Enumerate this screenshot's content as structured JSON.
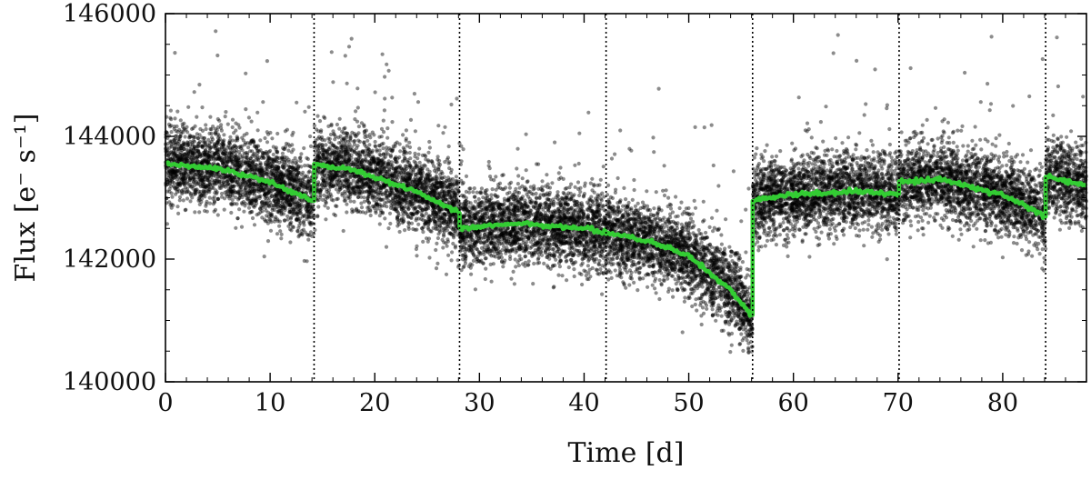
{
  "chart_data": {
    "type": "scatter",
    "xlabel": "Time [d]",
    "ylabel": "Flux [e⁻ s⁻¹]",
    "xlim": [
      0,
      88
    ],
    "ylim": [
      140000,
      146000
    ],
    "xticks": [
      "0",
      "10",
      "20",
      "30",
      "40",
      "50",
      "60",
      "70",
      "80"
    ],
    "yticks": [
      "140000",
      "142000",
      "144000",
      "146000"
    ],
    "grid": false,
    "point_color": "#000000",
    "model_color": "#33cc33",
    "vlines": [
      14.2,
      28.1,
      42.1,
      56.1,
      70.1,
      84.1
    ],
    "segments": [
      {
        "x": [
          0,
          14.2
        ],
        "trend": [
          [
            0,
            143550
          ],
          [
            5,
            143480
          ],
          [
            10,
            143250
          ],
          [
            14.2,
            142950
          ]
        ],
        "scatter": 320
      },
      {
        "x": [
          14.2,
          28.1
        ],
        "trend": [
          [
            14.2,
            143550
          ],
          [
            18,
            143450
          ],
          [
            24,
            143100
          ],
          [
            28.1,
            142750
          ]
        ],
        "scatter": 320
      },
      {
        "x": [
          28.1,
          56.1
        ],
        "trend": [
          [
            28.1,
            142500
          ],
          [
            34,
            142580
          ],
          [
            40,
            142500
          ],
          [
            46,
            142300
          ],
          [
            50,
            142050
          ],
          [
            54,
            141500
          ],
          [
            56.1,
            141050
          ]
        ],
        "scatter": 320
      },
      {
        "x": [
          56.1,
          70.1
        ],
        "trend": [
          [
            56.1,
            142950
          ],
          [
            60,
            143050
          ],
          [
            66,
            143100
          ],
          [
            70.1,
            143050
          ]
        ],
        "scatter": 320
      },
      {
        "x": [
          70.1,
          84.1
        ],
        "trend": [
          [
            70.1,
            143250
          ],
          [
            74,
            143300
          ],
          [
            80,
            143050
          ],
          [
            84.1,
            142700
          ]
        ],
        "scatter": 320
      },
      {
        "x": [
          84.1,
          88
        ],
        "trend": [
          [
            84.1,
            143350
          ],
          [
            88,
            143200
          ]
        ],
        "scatter": 320
      }
    ]
  }
}
